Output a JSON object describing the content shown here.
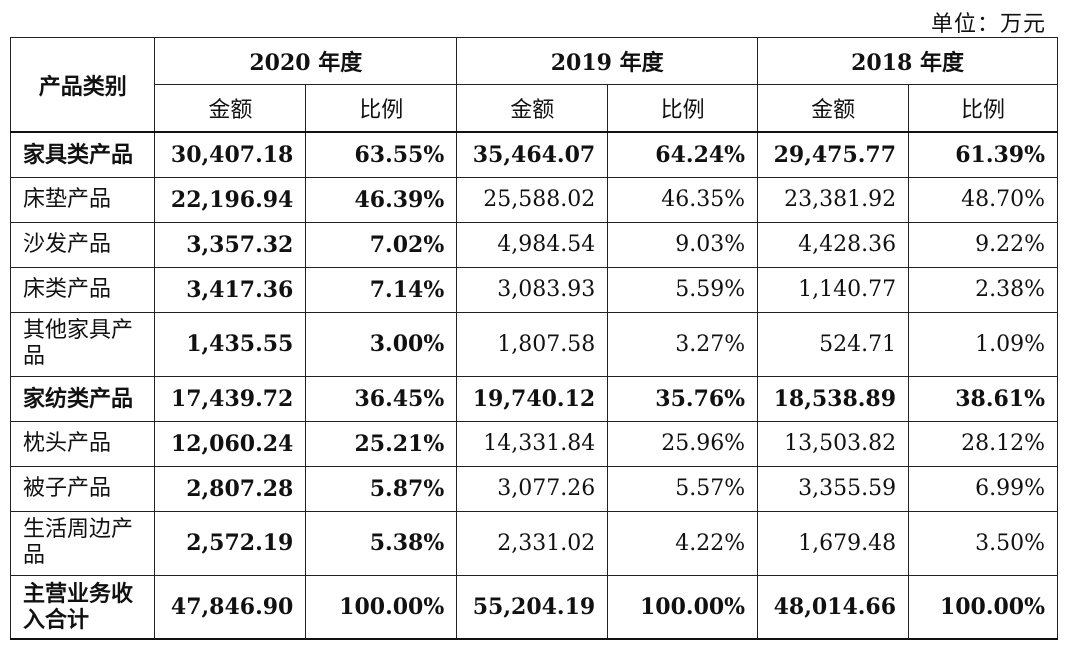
{
  "unit_label": "单位：万元",
  "header": {
    "category": "产品类别",
    "years": [
      "2020 年度",
      "2019 年度",
      "2018 年度"
    ],
    "amount": "金额",
    "ratio": "比例"
  },
  "rows": [
    {
      "name": "家具类产品",
      "bold": true,
      "v": [
        "30,407.18",
        "63.55%",
        "35,464.07",
        "64.24%",
        "29,475.77",
        "61.39%"
      ]
    },
    {
      "name": "床垫产品",
      "bold": false,
      "v": [
        "22,196.94",
        "46.39%",
        "25,588.02",
        "46.35%",
        "23,381.92",
        "48.70%"
      ]
    },
    {
      "name": "沙发产品",
      "bold": false,
      "v": [
        "3,357.32",
        "7.02%",
        "4,984.54",
        "9.03%",
        "4,428.36",
        "9.22%"
      ]
    },
    {
      "name": "床类产品",
      "bold": false,
      "v": [
        "3,417.36",
        "7.14%",
        "3,083.93",
        "5.59%",
        "1,140.77",
        "2.38%"
      ]
    },
    {
      "name": "其他家具产品",
      "bold": false,
      "v": [
        "1,435.55",
        "3.00%",
        "1,807.58",
        "3.27%",
        "524.71",
        "1.09%"
      ]
    },
    {
      "name": "家纺类产品",
      "bold": true,
      "v": [
        "17,439.72",
        "36.45%",
        "19,740.12",
        "35.76%",
        "18,538.89",
        "38.61%"
      ]
    },
    {
      "name": "枕头产品",
      "bold": false,
      "v": [
        "12,060.24",
        "25.21%",
        "14,331.84",
        "25.96%",
        "13,503.82",
        "28.12%"
      ]
    },
    {
      "name": "被子产品",
      "bold": false,
      "v": [
        "2,807.28",
        "5.87%",
        "3,077.26",
        "5.57%",
        "3,355.59",
        "6.99%"
      ]
    },
    {
      "name": "生活周边产品",
      "bold": false,
      "v": [
        "2,572.19",
        "5.38%",
        "2,331.02",
        "4.22%",
        "1,679.48",
        "3.50%"
      ]
    },
    {
      "name": "主营业务收入合计",
      "bold": true,
      "v": [
        "47,846.90",
        "100.00%",
        "55,204.19",
        "100.00%",
        "48,014.66",
        "100.00%"
      ]
    }
  ]
}
